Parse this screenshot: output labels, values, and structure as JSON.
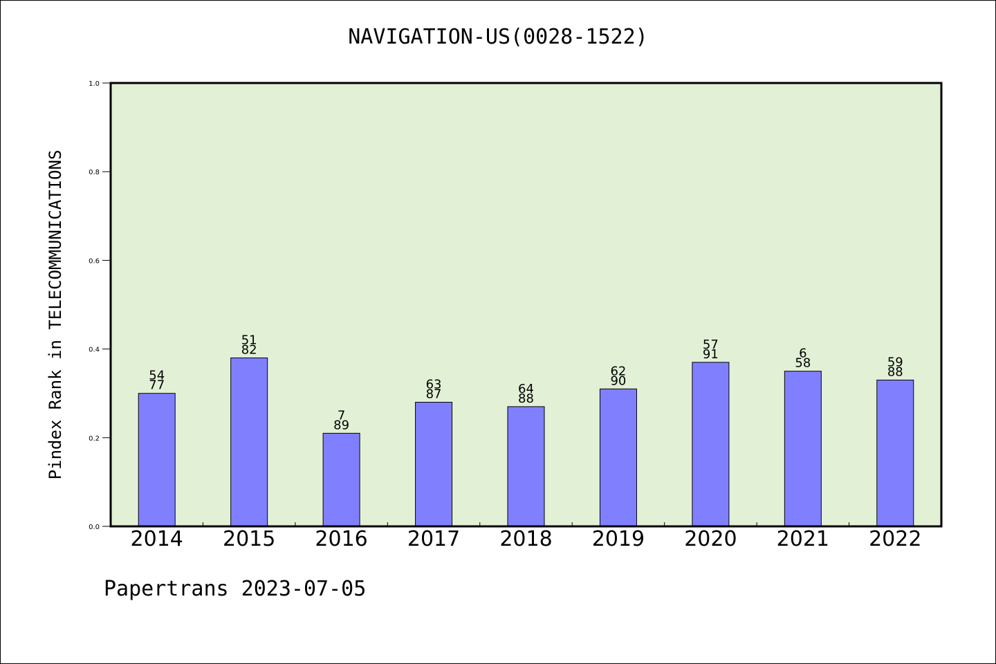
{
  "footer": {
    "text": "Papertrans 2023-07-05"
  },
  "chart_data": {
    "type": "bar",
    "title": "NAVIGATION-US(0028-1522)",
    "xlabel": "",
    "ylabel": "Pindex Rank in TELECOMMUNICATIONS",
    "categories": [
      "2014",
      "2015",
      "2016",
      "2017",
      "2018",
      "2019",
      "2020",
      "2021",
      "2022"
    ],
    "values": [
      0.3,
      0.38,
      0.21,
      0.28,
      0.27,
      0.31,
      0.37,
      0.35,
      0.33
    ],
    "bar_labels": [
      [
        "54",
        "77"
      ],
      [
        "51",
        "82"
      ],
      [
        "7",
        "89"
      ],
      [
        "63",
        "87"
      ],
      [
        "64",
        "88"
      ],
      [
        "62",
        "90"
      ],
      [
        "57",
        "91"
      ],
      [
        "6",
        "58"
      ],
      [
        "59",
        "88"
      ]
    ],
    "ylim": [
      0,
      1.0
    ],
    "yticks": [
      "0.0",
      "0.2",
      "0.4",
      "0.6",
      "0.8",
      "1.0"
    ],
    "grid": false,
    "colors": {
      "bar": "#8080ff",
      "plot_bg": "#e2f0d6",
      "axis": "#000000"
    }
  }
}
